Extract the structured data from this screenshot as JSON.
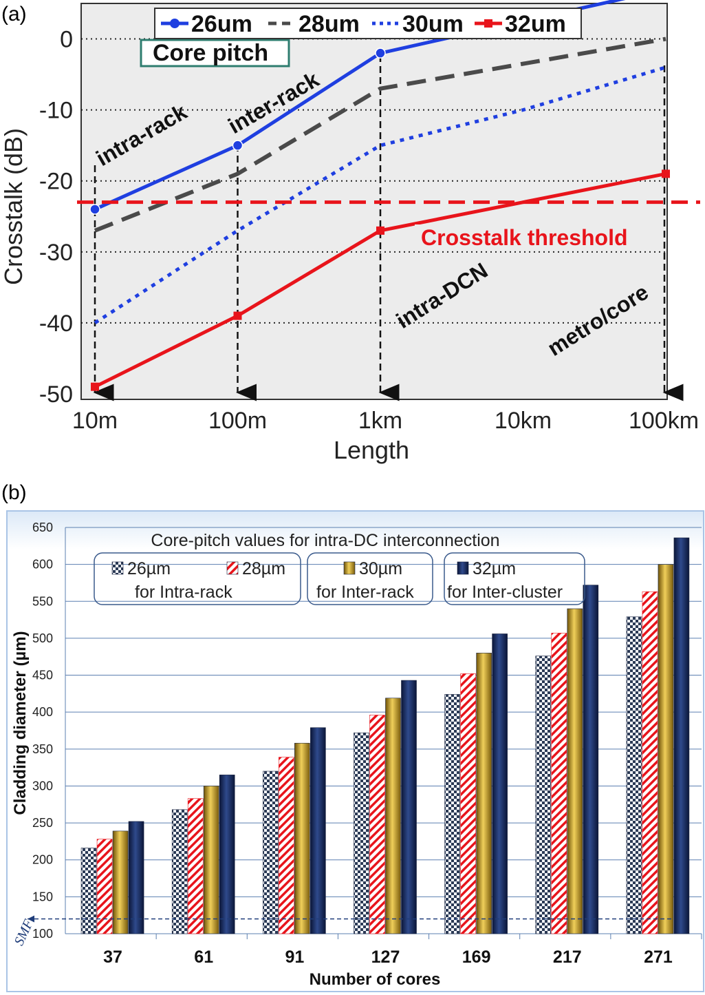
{
  "panel_a_label": "(a)",
  "panel_b_label": "(b)",
  "chart_data": [
    {
      "type": "line",
      "xlabel": "Length",
      "ylabel": "Crosstalk (dB)",
      "x_scale": "log",
      "x_ticks": [
        "10m",
        "100m",
        "1km",
        "10km",
        "100km"
      ],
      "ylim": [
        -50,
        5
      ],
      "y_ticks": [
        0,
        -10,
        -20,
        -30,
        -40,
        -50
      ],
      "grid": "horizontal-dotted",
      "legend_position": "top",
      "series": [
        {
          "name": "26um",
          "color": "#1f3fe0",
          "style": "solid",
          "marker": "circle",
          "x_m": [
            10,
            100,
            1000,
            100000
          ],
          "y": [
            -24,
            -15,
            -2,
            7
          ]
        },
        {
          "name": "28um",
          "color": "#4a4a4a",
          "style": "dashed",
          "marker": "none",
          "x_m": [
            10,
            100,
            1000,
            100000
          ],
          "y": [
            -27,
            -19,
            -7,
            0
          ]
        },
        {
          "name": "30um",
          "color": "#1f3fe0",
          "style": "dotted",
          "marker": "none",
          "x_m": [
            10,
            100,
            1000,
            10000,
            100000
          ],
          "y": [
            -40,
            -27,
            -15,
            -10,
            -4
          ]
        },
        {
          "name": "32um",
          "color": "#e8141b",
          "style": "solid",
          "marker": "square",
          "x_m": [
            10,
            100,
            1000,
            100000
          ],
          "y": [
            -49,
            -39,
            -27,
            -19
          ]
        }
      ],
      "threshold": {
        "label": "Crosstalk threshold",
        "y": -23,
        "color": "#e8141b"
      },
      "core_pitch_label": "Core pitch",
      "region_labels": [
        "intra-rack",
        "inter-rack",
        "intra-DCN",
        "metro/core"
      ],
      "marked_lengths_m": [
        10,
        100,
        1000,
        100000
      ]
    },
    {
      "type": "bar",
      "title": "Core-pitch values for intra-DC interconnection",
      "xlabel": "Number of cores",
      "ylabel": "Cladding diameter (µm)",
      "ylim": [
        100,
        650
      ],
      "y_ticks": [
        100,
        150,
        200,
        250,
        300,
        350,
        400,
        450,
        500,
        550,
        600,
        650
      ],
      "grid": "horizontal",
      "categories": [
        "37",
        "61",
        "91",
        "127",
        "169",
        "217",
        "271"
      ],
      "series": [
        {
          "name": "26µm",
          "color": "#2b3a55",
          "values": [
            216,
            268,
            320,
            372,
            424,
            476,
            529
          ]
        },
        {
          "name": "28µm",
          "color": "#e8141b",
          "values": [
            228,
            283,
            339,
            396,
            452,
            507,
            563
          ]
        },
        {
          "name": "30µm",
          "color": "#c9a227",
          "values": [
            239,
            300,
            358,
            419,
            480,
            540,
            600
          ]
        },
        {
          "name": "32µm",
          "color": "#15285e",
          "values": [
            252,
            315,
            379,
            443,
            506,
            572,
            636
          ]
        }
      ],
      "legend_groups": [
        {
          "entries": [
            "26µm",
            "28µm"
          ],
          "caption": "for Intra-rack"
        },
        {
          "entries": [
            "30µm"
          ],
          "caption": "for Inter-rack"
        },
        {
          "entries": [
            "32µm"
          ],
          "caption": "for Inter-cluster"
        }
      ],
      "reference_line": {
        "label": "SMF",
        "y": 120
      }
    }
  ]
}
